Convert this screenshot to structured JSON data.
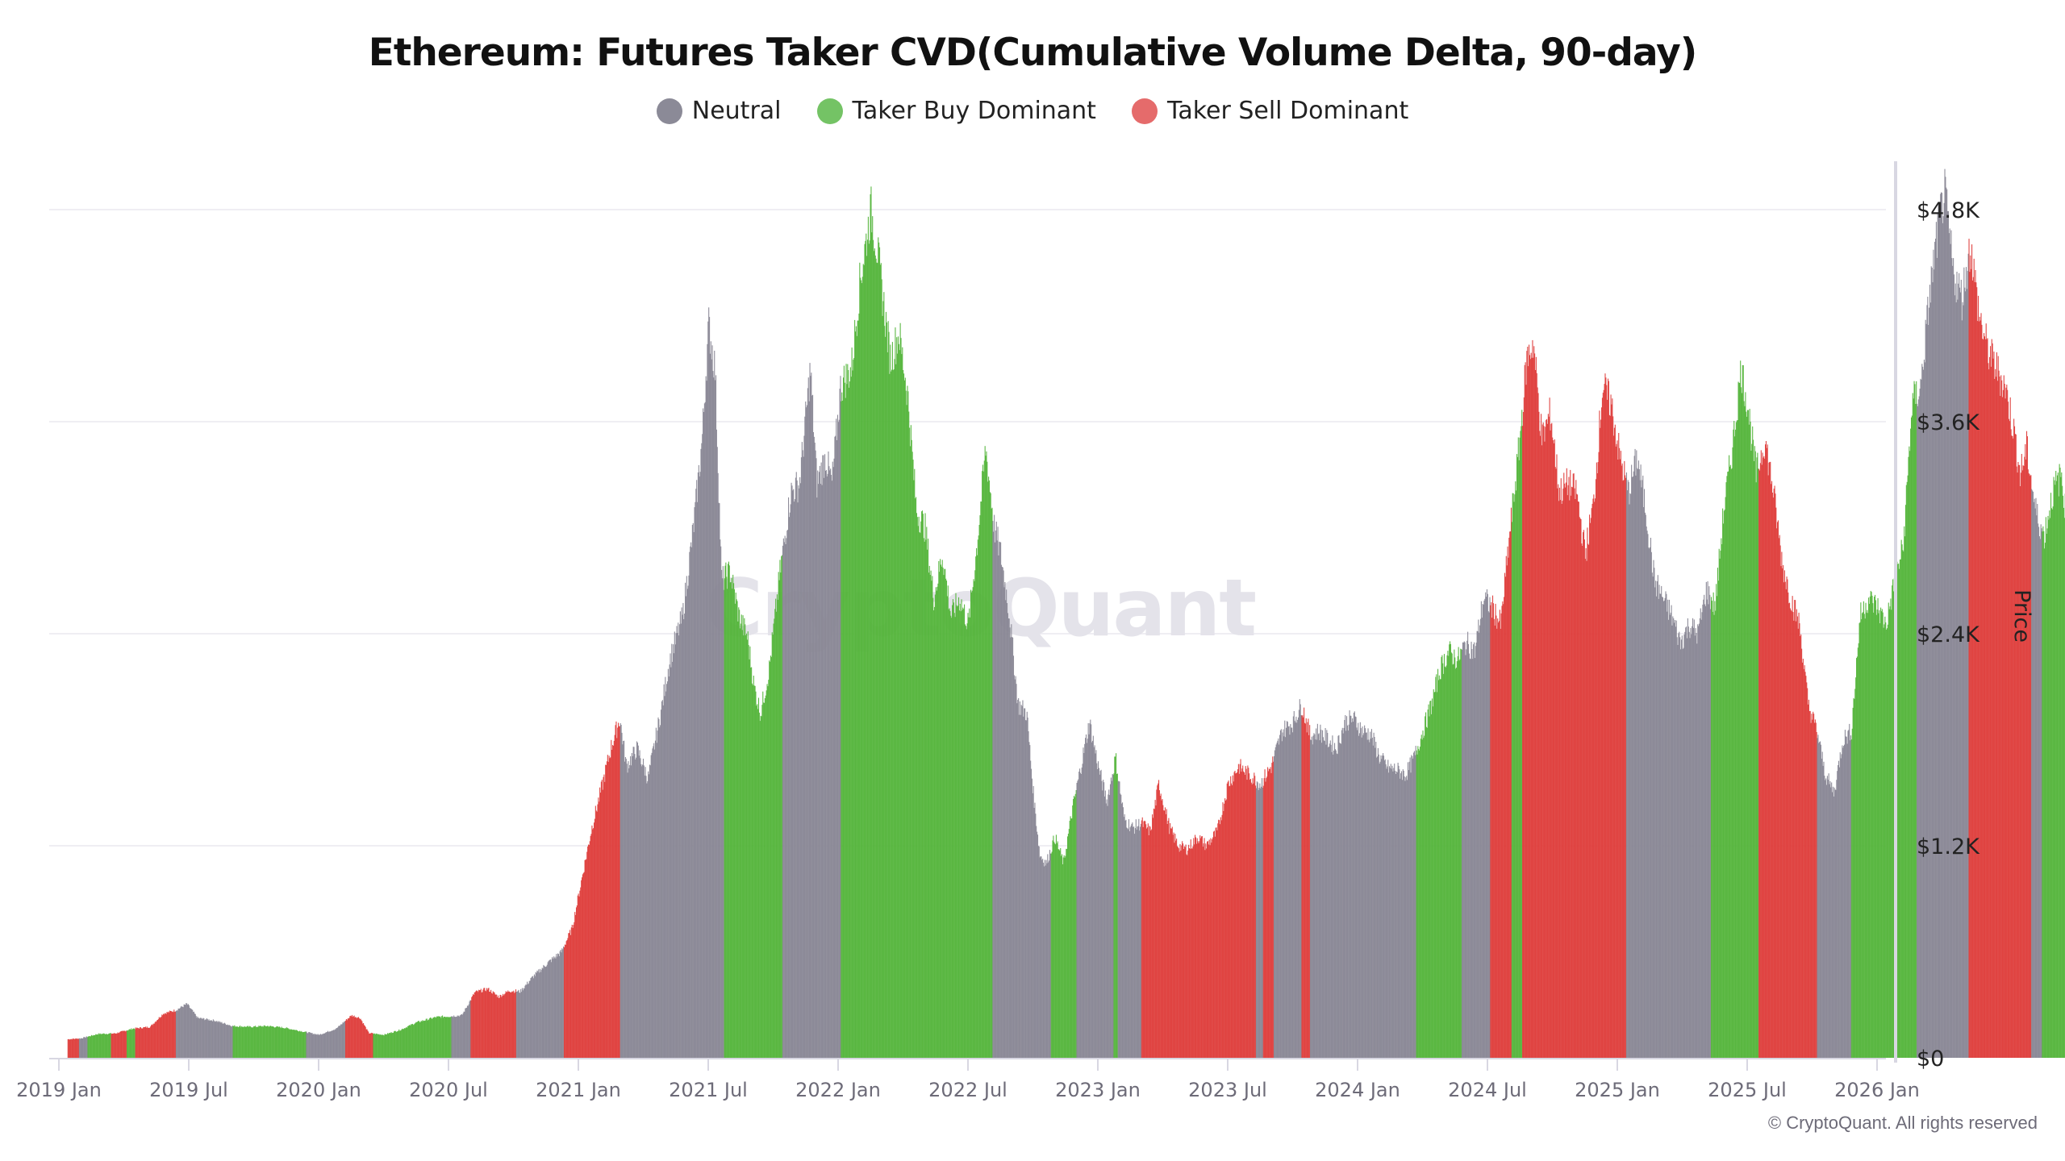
{
  "title": "Ethereum: Futures Taker CVD(Cumulative Volume Delta, 90-day)",
  "legend": [
    {
      "label": "Neutral",
      "color": "#8b8a97",
      "key": "neutral"
    },
    {
      "label": "Taker Buy Dominant",
      "color": "#74c365",
      "key": "buy"
    },
    {
      "label": "Taker Sell Dominant",
      "color": "#e56b6b",
      "key": "sell"
    }
  ],
  "watermark": "CryptoQuant",
  "copyright": "© CryptoQuant. All rights reserved",
  "colors": {
    "neutral": "#888694",
    "buy": "#53b43a",
    "sell": "#de3c3a",
    "grid": "#efeef3",
    "axis": "#d8d7e2"
  },
  "chart_data": {
    "type": "bar",
    "title": "Ethereum: Futures Taker CVD(Cumulative Volume Delta, 90-day)",
    "xlabel": "",
    "ylabel": "Price",
    "y_axis_position": "right",
    "ylim": [
      0,
      4800
    ],
    "yticks": [
      {
        "value": 0,
        "label": "$0"
      },
      {
        "value": 1200,
        "label": "$1.2K"
      },
      {
        "value": 2400,
        "label": "$2.4K"
      },
      {
        "value": 3600,
        "label": "$3.6K"
      },
      {
        "value": 4800,
        "label": "$4.8K"
      }
    ],
    "xticks": [
      "2019 Jan",
      "2019 Jul",
      "2020 Jan",
      "2020 Jul",
      "2021 Jan",
      "2021 Jul",
      "2022 Jan",
      "2022 Jul",
      "2023 Jan",
      "2023 Jul",
      "2024 Jan",
      "2024 Jul",
      "2025 Jan",
      "2025 Jul",
      "2026 Jan"
    ],
    "grid": true,
    "legend_position": "top",
    "series_note": "Bar color = regime (neutral / buy / sell); bar height = ETH price. x in months since 2019 Jan.",
    "price_points": [
      [
        0.4,
        105
      ],
      [
        1.0,
        110
      ],
      [
        1.8,
        135
      ],
      [
        2.6,
        138
      ],
      [
        3.4,
        165
      ],
      [
        4.2,
        175
      ],
      [
        4.8,
        250
      ],
      [
        5.4,
        270
      ],
      [
        5.9,
        305
      ],
      [
        6.4,
        225
      ],
      [
        7.2,
        210
      ],
      [
        8.0,
        180
      ],
      [
        8.8,
        175
      ],
      [
        9.6,
        180
      ],
      [
        10.4,
        170
      ],
      [
        11.2,
        150
      ],
      [
        12.0,
        130
      ],
      [
        12.8,
        165
      ],
      [
        13.5,
        240
      ],
      [
        13.9,
        225
      ],
      [
        14.3,
        140
      ],
      [
        15.0,
        130
      ],
      [
        15.8,
        160
      ],
      [
        16.5,
        200
      ],
      [
        17.4,
        230
      ],
      [
        18.0,
        235
      ],
      [
        18.6,
        240
      ],
      [
        19.2,
        370
      ],
      [
        19.8,
        390
      ],
      [
        20.3,
        345
      ],
      [
        20.8,
        380
      ],
      [
        21.3,
        375
      ],
      [
        21.9,
        460
      ],
      [
        22.6,
        540
      ],
      [
        23.2,
        600
      ],
      [
        23.7,
        735
      ],
      [
        24.2,
        1050
      ],
      [
        24.6,
        1300
      ],
      [
        25.1,
        1550
      ],
      [
        25.5,
        1760
      ],
      [
        25.9,
        1920
      ],
      [
        26.2,
        1650
      ],
      [
        26.7,
        1750
      ],
      [
        27.2,
        1580
      ],
      [
        27.8,
        1960
      ],
      [
        28.2,
        2250
      ],
      [
        28.8,
        2500
      ],
      [
        29.3,
        3000
      ],
      [
        29.7,
        3500
      ],
      [
        30.0,
        4150
      ],
      [
        30.3,
        3900
      ],
      [
        30.6,
        2700
      ],
      [
        31.0,
        2750
      ],
      [
        31.4,
        2500
      ],
      [
        31.8,
        2380
      ],
      [
        32.1,
        2100
      ],
      [
        32.4,
        1950
      ],
      [
        32.8,
        2200
      ],
      [
        33.3,
        2750
      ],
      [
        33.8,
        3200
      ],
      [
        34.2,
        3250
      ],
      [
        34.7,
        3900
      ],
      [
        35.0,
        3250
      ],
      [
        35.4,
        3400
      ],
      [
        35.7,
        3250
      ],
      [
        36.1,
        3800
      ],
      [
        36.6,
        3900
      ],
      [
        37.0,
        4400
      ],
      [
        37.5,
        4800
      ],
      [
        37.8,
        4560
      ],
      [
        38.1,
        4250
      ],
      [
        38.4,
        3950
      ],
      [
        38.8,
        4100
      ],
      [
        39.2,
        3750
      ],
      [
        39.6,
        3100
      ],
      [
        40.0,
        3000
      ],
      [
        40.4,
        2600
      ],
      [
        40.8,
        2850
      ],
      [
        41.2,
        2500
      ],
      [
        41.6,
        2600
      ],
      [
        42.0,
        2450
      ],
      [
        42.4,
        2900
      ],
      [
        42.8,
        3450
      ],
      [
        43.2,
        3000
      ],
      [
        43.5,
        2850
      ],
      [
        43.9,
        2500
      ],
      [
        44.3,
        2000
      ],
      [
        44.7,
        1950
      ],
      [
        45.0,
        1500
      ],
      [
        45.3,
        1150
      ],
      [
        45.6,
        1100
      ],
      [
        46.0,
        1250
      ],
      [
        46.4,
        1100
      ],
      [
        46.8,
        1400
      ],
      [
        47.2,
        1650
      ],
      [
        47.6,
        1900
      ],
      [
        48.0,
        1650
      ],
      [
        48.4,
        1450
      ],
      [
        48.8,
        1700
      ],
      [
        49.2,
        1350
      ],
      [
        49.6,
        1300
      ],
      [
        50.0,
        1330
      ],
      [
        50.4,
        1280
      ],
      [
        50.8,
        1550
      ],
      [
        51.3,
        1300
      ],
      [
        51.7,
        1200
      ],
      [
        52.1,
        1180
      ],
      [
        52.6,
        1250
      ],
      [
        53.0,
        1200
      ],
      [
        53.5,
        1280
      ],
      [
        54.0,
        1550
      ],
      [
        54.5,
        1650
      ],
      [
        55.0,
        1600
      ],
      [
        55.5,
        1550
      ],
      [
        56.0,
        1650
      ],
      [
        56.5,
        1850
      ],
      [
        57.0,
        1900
      ],
      [
        57.4,
        2000
      ],
      [
        57.8,
        1820
      ],
      [
        58.2,
        1850
      ],
      [
        58.6,
        1800
      ],
      [
        59.0,
        1750
      ],
      [
        59.4,
        1900
      ],
      [
        59.8,
        1920
      ],
      [
        60.2,
        1850
      ],
      [
        60.6,
        1830
      ],
      [
        61.0,
        1700
      ],
      [
        61.4,
        1640
      ],
      [
        61.8,
        1630
      ],
      [
        62.2,
        1600
      ],
      [
        62.6,
        1700
      ],
      [
        63.0,
        1850
      ],
      [
        63.4,
        2000
      ],
      [
        63.8,
        2200
      ],
      [
        64.2,
        2300
      ],
      [
        64.6,
        2250
      ],
      [
        65.0,
        2350
      ],
      [
        65.4,
        2300
      ],
      [
        65.8,
        2600
      ],
      [
        66.2,
        2550
      ],
      [
        66.6,
        2450
      ],
      [
        67.0,
        2950
      ],
      [
        67.4,
        3400
      ],
      [
        67.8,
        3950
      ],
      [
        68.1,
        4050
      ],
      [
        68.5,
        3500
      ],
      [
        68.9,
        3650
      ],
      [
        69.3,
        3200
      ],
      [
        69.7,
        3250
      ],
      [
        70.1,
        3200
      ],
      [
        70.5,
        2850
      ],
      [
        70.9,
        3150
      ],
      [
        71.3,
        3800
      ],
      [
        71.7,
        3700
      ],
      [
        72.1,
        3400
      ],
      [
        72.5,
        3200
      ],
      [
        72.9,
        3400
      ],
      [
        73.3,
        3100
      ],
      [
        73.7,
        2700
      ],
      [
        74.1,
        2600
      ],
      [
        74.5,
        2500
      ],
      [
        74.9,
        2350
      ],
      [
        75.3,
        2450
      ],
      [
        75.7,
        2400
      ],
      [
        76.1,
        2650
      ],
      [
        76.5,
        2550
      ],
      [
        76.9,
        3100
      ],
      [
        77.3,
        3450
      ],
      [
        77.7,
        3900
      ],
      [
        78.0,
        3700
      ],
      [
        78.4,
        3300
      ],
      [
        78.8,
        3500
      ],
      [
        79.2,
        3200
      ],
      [
        79.6,
        2800
      ],
      [
        80.0,
        2600
      ],
      [
        80.4,
        2450
      ],
      [
        80.8,
        2000
      ],
      [
        81.2,
        1850
      ],
      [
        81.6,
        1600
      ],
      [
        82.0,
        1500
      ],
      [
        82.4,
        1800
      ],
      [
        82.8,
        1850
      ],
      [
        83.2,
        2500
      ],
      [
        83.6,
        2600
      ],
      [
        84.0,
        2550
      ],
      [
        84.4,
        2450
      ],
      [
        84.8,
        2700
      ],
      [
        85.2,
        2900
      ],
      [
        85.6,
        3700
      ],
      [
        86.0,
        3800
      ],
      [
        86.4,
        4300
      ],
      [
        86.8,
        4700
      ],
      [
        87.1,
        4900
      ],
      [
        87.5,
        4450
      ],
      [
        87.9,
        4300
      ],
      [
        88.3,
        4600
      ],
      [
        88.7,
        4200
      ],
      [
        89.1,
        4000
      ],
      [
        89.5,
        3900
      ],
      [
        89.9,
        3800
      ],
      [
        90.3,
        3550
      ],
      [
        90.6,
        3300
      ],
      [
        90.9,
        3450
      ],
      [
        91.3,
        3100
      ],
      [
        91.7,
        2950
      ],
      [
        92.1,
        3200
      ],
      [
        92.5,
        3300
      ],
      [
        92.8,
        2950
      ]
    ],
    "regimes": [
      {
        "from": 0.4,
        "to": 0.9,
        "regime": "sell"
      },
      {
        "from": 0.9,
        "to": 1.3,
        "regime": "neutral"
      },
      {
        "from": 1.3,
        "to": 2.4,
        "regime": "buy"
      },
      {
        "from": 2.4,
        "to": 3.1,
        "regime": "sell"
      },
      {
        "from": 3.1,
        "to": 3.5,
        "regime": "buy"
      },
      {
        "from": 3.5,
        "to": 5.4,
        "regime": "sell"
      },
      {
        "from": 5.4,
        "to": 8.0,
        "regime": "neutral"
      },
      {
        "from": 8.0,
        "to": 11.4,
        "regime": "buy"
      },
      {
        "from": 11.4,
        "to": 13.2,
        "regime": "neutral"
      },
      {
        "from": 13.2,
        "to": 14.5,
        "regime": "sell"
      },
      {
        "from": 14.5,
        "to": 16.0,
        "regime": "buy"
      },
      {
        "from": 16.0,
        "to": 18.1,
        "regime": "buy"
      },
      {
        "from": 18.1,
        "to": 19.0,
        "regime": "neutral"
      },
      {
        "from": 19.0,
        "to": 21.1,
        "regime": "sell"
      },
      {
        "from": 21.1,
        "to": 23.3,
        "regime": "neutral"
      },
      {
        "from": 23.3,
        "to": 25.9,
        "regime": "sell"
      },
      {
        "from": 25.9,
        "to": 30.7,
        "regime": "neutral"
      },
      {
        "from": 30.7,
        "to": 33.4,
        "regime": "buy"
      },
      {
        "from": 33.4,
        "to": 36.1,
        "regime": "neutral"
      },
      {
        "from": 36.1,
        "to": 38.8,
        "regime": "buy"
      },
      {
        "from": 38.8,
        "to": 41.8,
        "regime": "buy"
      },
      {
        "from": 41.8,
        "to": 42.4,
        "regime": "buy"
      },
      {
        "from": 42.4,
        "to": 43.1,
        "regime": "buy"
      },
      {
        "from": 43.1,
        "to": 45.8,
        "regime": "neutral"
      },
      {
        "from": 45.8,
        "to": 47.0,
        "regime": "buy"
      },
      {
        "from": 47.0,
        "to": 48.7,
        "regime": "neutral"
      },
      {
        "from": 48.7,
        "to": 48.9,
        "regime": "buy"
      },
      {
        "from": 48.9,
        "to": 50.0,
        "regime": "neutral"
      },
      {
        "from": 50.0,
        "to": 55.3,
        "regime": "sell"
      },
      {
        "from": 55.3,
        "to": 55.6,
        "regime": "neutral"
      },
      {
        "from": 55.6,
        "to": 56.1,
        "regime": "sell"
      },
      {
        "from": 56.1,
        "to": 57.4,
        "regime": "neutral"
      },
      {
        "from": 57.4,
        "to": 57.8,
        "regime": "sell"
      },
      {
        "from": 57.8,
        "to": 62.7,
        "regime": "neutral"
      },
      {
        "from": 62.7,
        "to": 64.8,
        "regime": "buy"
      },
      {
        "from": 64.8,
        "to": 66.1,
        "regime": "neutral"
      },
      {
        "from": 66.1,
        "to": 67.1,
        "regime": "sell"
      },
      {
        "from": 67.1,
        "to": 67.6,
        "regime": "buy"
      },
      {
        "from": 67.6,
        "to": 67.9,
        "regime": "sell"
      },
      {
        "from": 67.9,
        "to": 72.4,
        "regime": "sell"
      },
      {
        "from": 72.4,
        "to": 76.3,
        "regime": "neutral"
      },
      {
        "from": 76.3,
        "to": 78.5,
        "regime": "buy"
      },
      {
        "from": 78.5,
        "to": 78.9,
        "regime": "sell"
      },
      {
        "from": 78.9,
        "to": 81.2,
        "regime": "sell"
      },
      {
        "from": 81.2,
        "to": 82.8,
        "regime": "neutral"
      },
      {
        "from": 82.8,
        "to": 85.8,
        "regime": "buy"
      },
      {
        "from": 85.8,
        "to": 88.2,
        "regime": "neutral"
      },
      {
        "from": 88.2,
        "to": 91.1,
        "regime": "sell"
      },
      {
        "from": 91.1,
        "to": 91.6,
        "regime": "neutral"
      },
      {
        "from": 91.6,
        "to": 92.8,
        "regime": "buy"
      }
    ]
  }
}
